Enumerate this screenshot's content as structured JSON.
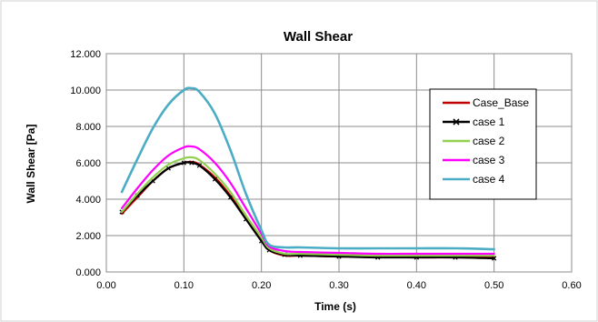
{
  "chart_data": {
    "type": "line",
    "title": "Wall Shear",
    "xlabel": "Time (s)",
    "ylabel": "Wall Shear [Pa]",
    "xlim": [
      0.0,
      0.6
    ],
    "ylim": [
      0.0,
      12.0
    ],
    "x_ticks": [
      "0.00",
      "0.10",
      "0.20",
      "0.30",
      "0.40",
      "0.50",
      "0.60"
    ],
    "y_ticks": [
      "0.000",
      "2.000",
      "4.000",
      "6.000",
      "8.000",
      "10.000",
      "12.000"
    ],
    "grid": true,
    "legend_position": "right",
    "series": [
      {
        "name": "Case_Base",
        "color": "#c00000",
        "marker": "none",
        "x": [
          0.02,
          0.04,
          0.06,
          0.08,
          0.1,
          0.11,
          0.12,
          0.14,
          0.16,
          0.18,
          0.2,
          0.21,
          0.23,
          0.25,
          0.3,
          0.35,
          0.4,
          0.45,
          0.5
        ],
        "y": [
          3.2,
          4.1,
          5.0,
          5.7,
          6.0,
          6.05,
          5.9,
          5.2,
          4.2,
          3.0,
          1.8,
          1.2,
          0.9,
          0.9,
          0.85,
          0.85,
          0.8,
          0.8,
          0.8
        ]
      },
      {
        "name": "case 1",
        "color": "#000000",
        "marker": "x",
        "x": [
          0.02,
          0.04,
          0.06,
          0.08,
          0.1,
          0.11,
          0.12,
          0.14,
          0.16,
          0.18,
          0.2,
          0.21,
          0.23,
          0.25,
          0.3,
          0.35,
          0.4,
          0.45,
          0.5
        ],
        "y": [
          3.3,
          4.2,
          5.0,
          5.7,
          6.0,
          6.0,
          5.85,
          5.1,
          4.1,
          2.9,
          1.7,
          1.2,
          0.95,
          0.9,
          0.85,
          0.8,
          0.8,
          0.8,
          0.75
        ]
      },
      {
        "name": "case 2",
        "color": "#92d050",
        "marker": "none",
        "x": [
          0.02,
          0.04,
          0.06,
          0.08,
          0.1,
          0.11,
          0.12,
          0.14,
          0.16,
          0.18,
          0.2,
          0.21,
          0.23,
          0.25,
          0.3,
          0.35,
          0.4,
          0.45,
          0.5
        ],
        "y": [
          3.3,
          4.3,
          5.2,
          5.9,
          6.25,
          6.3,
          6.15,
          5.4,
          4.4,
          3.1,
          1.9,
          1.3,
          1.0,
          1.0,
          0.95,
          0.9,
          0.9,
          0.9,
          0.9
        ]
      },
      {
        "name": "case 3",
        "color": "#ff00ff",
        "marker": "none",
        "x": [
          0.02,
          0.04,
          0.06,
          0.08,
          0.1,
          0.11,
          0.12,
          0.14,
          0.16,
          0.18,
          0.2,
          0.21,
          0.23,
          0.25,
          0.3,
          0.35,
          0.4,
          0.45,
          0.5
        ],
        "y": [
          3.5,
          4.6,
          5.6,
          6.4,
          6.85,
          6.9,
          6.75,
          6.0,
          4.9,
          3.5,
          2.1,
          1.4,
          1.15,
          1.1,
          1.05,
          1.0,
          1.0,
          1.0,
          1.0
        ]
      },
      {
        "name": "case 4",
        "color": "#4bacc6",
        "marker": "none",
        "x": [
          0.02,
          0.04,
          0.06,
          0.08,
          0.1,
          0.11,
          0.12,
          0.14,
          0.16,
          0.18,
          0.2,
          0.21,
          0.23,
          0.25,
          0.3,
          0.35,
          0.4,
          0.45,
          0.5
        ],
        "y": [
          4.4,
          6.2,
          7.9,
          9.2,
          10.0,
          10.1,
          9.9,
          8.7,
          6.7,
          4.3,
          2.3,
          1.5,
          1.35,
          1.35,
          1.3,
          1.3,
          1.3,
          1.3,
          1.25
        ]
      }
    ]
  }
}
